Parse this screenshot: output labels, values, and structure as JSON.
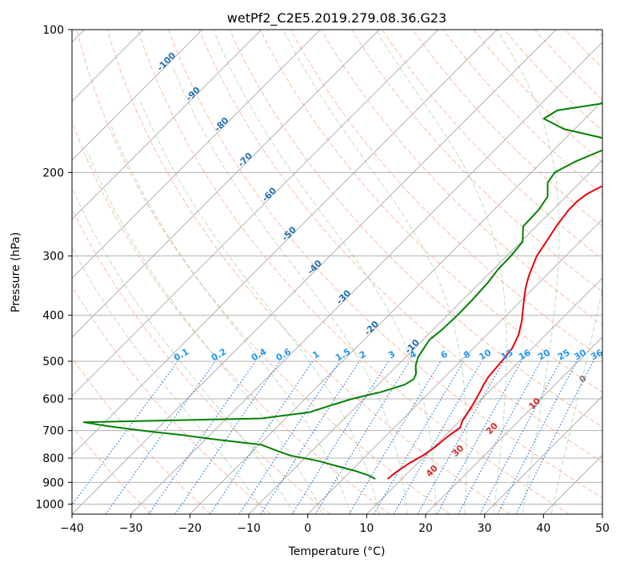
{
  "chart_data": {
    "type": "line",
    "title": "wetPf2_C2E5.2019.279.08.36.G23",
    "xlabel": "Temperature (°C)",
    "ylabel": "Pressure (hPa)",
    "xlim": [
      -40,
      50
    ],
    "ylim": [
      1050,
      100
    ],
    "y_scale": "log",
    "grid": true,
    "x_ticks": [
      -40,
      -30,
      -20,
      -10,
      0,
      10,
      20,
      30,
      40,
      50
    ],
    "y_ticks": [
      100,
      200,
      300,
      400,
      500,
      600,
      700,
      800,
      900,
      1000
    ],
    "series": [
      {
        "color": "#e8000b",
        "pressure": [
          885,
          870,
          850,
          820,
          790,
          760,
          720,
          690,
          670,
          640,
          610,
          580,
          560,
          540,
          500,
          470,
          440,
          410,
          380,
          350,
          330,
          300,
          280,
          260,
          240,
          230,
          222,
          215,
          205,
          195,
          185,
          175,
          165,
          155,
          148,
          140,
          130,
          120,
          112,
          105,
          100
        ],
        "temperature": [
          7.6,
          7.7,
          8.0,
          8.6,
          9.6,
          10.2,
          10.6,
          11.2,
          10.5,
          9.9,
          9.3,
          8.5,
          7.9,
          7.4,
          7.0,
          6.6,
          5.4,
          3.5,
          1.1,
          -1.4,
          -2.9,
          -4.9,
          -5.7,
          -6.6,
          -7.3,
          -7.3,
          -6.9,
          -5.9,
          -3.9,
          -0.9,
          3.1,
          7.9,
          12.2,
          15.4,
          16.4,
          17.1,
          18.0,
          18.5,
          19.4,
          20.8,
          22.1
        ]
      },
      {
        "color": "#008000",
        "pressure": [
          885,
          870,
          850,
          830,
          810,
          790,
          770,
          750,
          730,
          715,
          705,
          695,
          685,
          672,
          660,
          640,
          620,
          600,
          580,
          560,
          545,
          530,
          510,
          490,
          470,
          450,
          430,
          400,
          370,
          340,
          320,
          300,
          280,
          260,
          240,
          225,
          210,
          200,
          190,
          178,
          170,
          162,
          154,
          148,
          142,
          135,
          125,
          115,
          108,
          104,
          100
        ],
        "temperature": [
          5.5,
          3.8,
          0.5,
          -3.5,
          -7.5,
          -12.9,
          -16.3,
          -19.6,
          -28.6,
          -34.8,
          -39.9,
          -44.6,
          -48.8,
          -53.6,
          -24.1,
          -16.9,
          -14.6,
          -12.0,
          -8.2,
          -5.5,
          -4.9,
          -5.5,
          -6.9,
          -7.9,
          -8.4,
          -8.9,
          -8.5,
          -8.3,
          -8.4,
          -8.7,
          -9.2,
          -9.3,
          -9.7,
          -12.2,
          -12.4,
          -13.1,
          -15.5,
          -16.0,
          -14.4,
          -11.3,
          -12.8,
          -21.8,
          -27.0,
          -26.1,
          -18.2,
          -11.6,
          -6.4,
          -4.1,
          -3.0,
          -2.5,
          -2.0
        ]
      }
    ],
    "annotations": {
      "dry_adiabats": [
        "-100",
        "-90",
        "-80",
        "-70",
        "-60",
        "-50",
        "-40",
        "-30",
        "-20",
        "-10"
      ],
      "mixing_ratios": [
        "0.1",
        "0.2",
        "0.4",
        "0.6",
        "1",
        "1.5",
        "2",
        "3",
        "4",
        "6",
        "8",
        "10",
        "13",
        "16",
        "20",
        "25",
        "30",
        "36"
      ],
      "moist_adiabats": [
        "0",
        "10",
        "20",
        "30",
        "40"
      ]
    }
  }
}
